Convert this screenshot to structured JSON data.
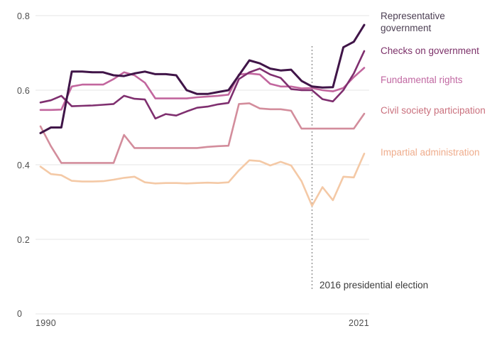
{
  "chart_data": {
    "type": "line",
    "title": "",
    "x_label": "",
    "y_label": "",
    "x": [
      1990,
      1991,
      1992,
      1993,
      1994,
      1995,
      1996,
      1997,
      1998,
      1999,
      2000,
      2001,
      2002,
      2003,
      2004,
      2005,
      2006,
      2007,
      2008,
      2009,
      2010,
      2011,
      2012,
      2013,
      2014,
      2015,
      2016,
      2017,
      2018,
      2019,
      2020,
      2021
    ],
    "x_range": [
      1990,
      2021
    ],
    "ylim": [
      0,
      0.8
    ],
    "y_ticks": [
      0,
      0.2,
      0.4,
      0.6,
      0.8
    ],
    "y_tick_labels": [
      "0",
      "0.2",
      "0.4",
      "0.6",
      "0.8"
    ],
    "x_tick_labels": [
      "1990",
      "2021"
    ],
    "grid": true,
    "legend_position": "right",
    "series": [
      {
        "name": "Representative government",
        "color": "#401548",
        "label_color": "#4c3f53",
        "values": [
          0.485,
          0.5,
          0.5,
          0.65,
          0.65,
          0.648,
          0.648,
          0.64,
          0.638,
          0.645,
          0.65,
          0.643,
          0.643,
          0.64,
          0.6,
          0.59,
          0.59,
          0.595,
          0.6,
          0.64,
          0.68,
          0.672,
          0.658,
          0.653,
          0.655,
          0.625,
          0.61,
          0.607,
          0.608,
          0.715,
          0.73,
          0.775
        ]
      },
      {
        "name": "Checks on government",
        "color": "#7f2f6f",
        "label_color": "#7c3169",
        "values": [
          0.567,
          0.573,
          0.585,
          0.557,
          0.558,
          0.559,
          0.561,
          0.563,
          0.585,
          0.577,
          0.575,
          0.524,
          0.536,
          0.532,
          0.543,
          0.553,
          0.556,
          0.562,
          0.566,
          0.63,
          0.648,
          0.658,
          0.642,
          0.633,
          0.603,
          0.6,
          0.6,
          0.576,
          0.57,
          0.6,
          0.645,
          0.705
        ]
      },
      {
        "name": "Fundamental rights",
        "color": "#c2669e",
        "label_color": "#c168a2",
        "values": [
          0.547,
          0.547,
          0.548,
          0.61,
          0.615,
          0.615,
          0.615,
          0.63,
          0.648,
          0.64,
          0.62,
          0.578,
          0.578,
          0.578,
          0.578,
          0.581,
          0.583,
          0.585,
          0.588,
          0.642,
          0.645,
          0.642,
          0.617,
          0.61,
          0.61,
          0.605,
          0.606,
          0.6,
          0.597,
          0.606,
          0.635,
          0.66
        ]
      },
      {
        "name": "Civil society participation",
        "color": "#d38d9c",
        "label_color": "#ca717e",
        "values": [
          0.503,
          0.45,
          0.405,
          0.405,
          0.405,
          0.405,
          0.405,
          0.405,
          0.48,
          0.445,
          0.445,
          0.445,
          0.445,
          0.445,
          0.445,
          0.445,
          0.448,
          0.45,
          0.451,
          0.563,
          0.565,
          0.551,
          0.549,
          0.549,
          0.545,
          0.497,
          0.497,
          0.497,
          0.497,
          0.497,
          0.497,
          0.537
        ]
      },
      {
        "name": "Impartial administration",
        "color": "#f4c9a6",
        "label_color": "#efad8d",
        "values": [
          0.395,
          0.375,
          0.372,
          0.357,
          0.355,
          0.355,
          0.356,
          0.36,
          0.365,
          0.368,
          0.353,
          0.35,
          0.351,
          0.351,
          0.35,
          0.351,
          0.352,
          0.351,
          0.353,
          0.385,
          0.412,
          0.41,
          0.398,
          0.408,
          0.398,
          0.356,
          0.29,
          0.34,
          0.305,
          0.368,
          0.366,
          0.43
        ]
      }
    ],
    "annotation": {
      "text": "2016 presidential election",
      "x_year": 2016
    },
    "colors": {
      "grid": "#e6e6e6",
      "axis_text": "#4d4d4d",
      "annotation_text": "#3c3c3c",
      "vline": "#8f8f8f",
      "background": "#ffffff"
    }
  },
  "legend": {
    "items": [
      {
        "label": "Representative government"
      },
      {
        "label": "Checks on government"
      },
      {
        "label": "Fundamental rights"
      },
      {
        "label": "Civil society participation"
      },
      {
        "label": "Impartial administration"
      }
    ]
  }
}
